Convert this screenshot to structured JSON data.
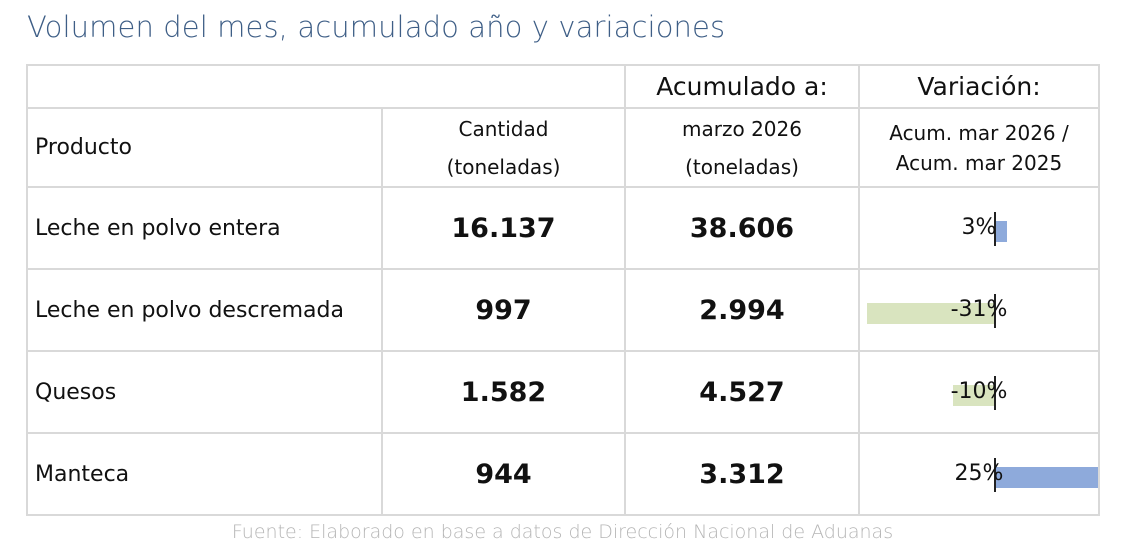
{
  "title": "Volumen del mes, acumulado año y variaciones",
  "headers": {
    "product": "Producto",
    "qty_line1": "Cantidad",
    "qty_line2": "(toneladas)",
    "acc_title": "Acumulado a:",
    "acc_line1": "marzo 2026",
    "acc_line2": "(toneladas)",
    "var_title": "Variación:",
    "var_line1": "Acum. mar 2026 /",
    "var_line2": "Acum. mar 2025"
  },
  "rows": [
    {
      "product": "Leche en polvo entera",
      "cantidad": "16.137",
      "acumulado": "38.606",
      "variacion": "3%",
      "variacion_value": 3
    },
    {
      "product": "Leche en polvo descremada",
      "cantidad": "997",
      "acumulado": "2.994",
      "variacion": "-31%",
      "variacion_value": -31
    },
    {
      "product": "Quesos",
      "cantidad": "1.582",
      "acumulado": "4.527",
      "variacion": "-10%",
      "variacion_value": -10
    },
    {
      "product": "Manteca",
      "cantidad": "944",
      "acumulado": "3.312",
      "variacion": "25%",
      "variacion_value": 25
    }
  ],
  "colors": {
    "positive_bar": "#8eaadb",
    "negative_bar": "#d9e4bf",
    "green": "#92d050",
    "blue": "#3e5e86"
  },
  "source": "Fuente: Elaborado en base a datos de Dirección Nacional de Aduanas"
}
